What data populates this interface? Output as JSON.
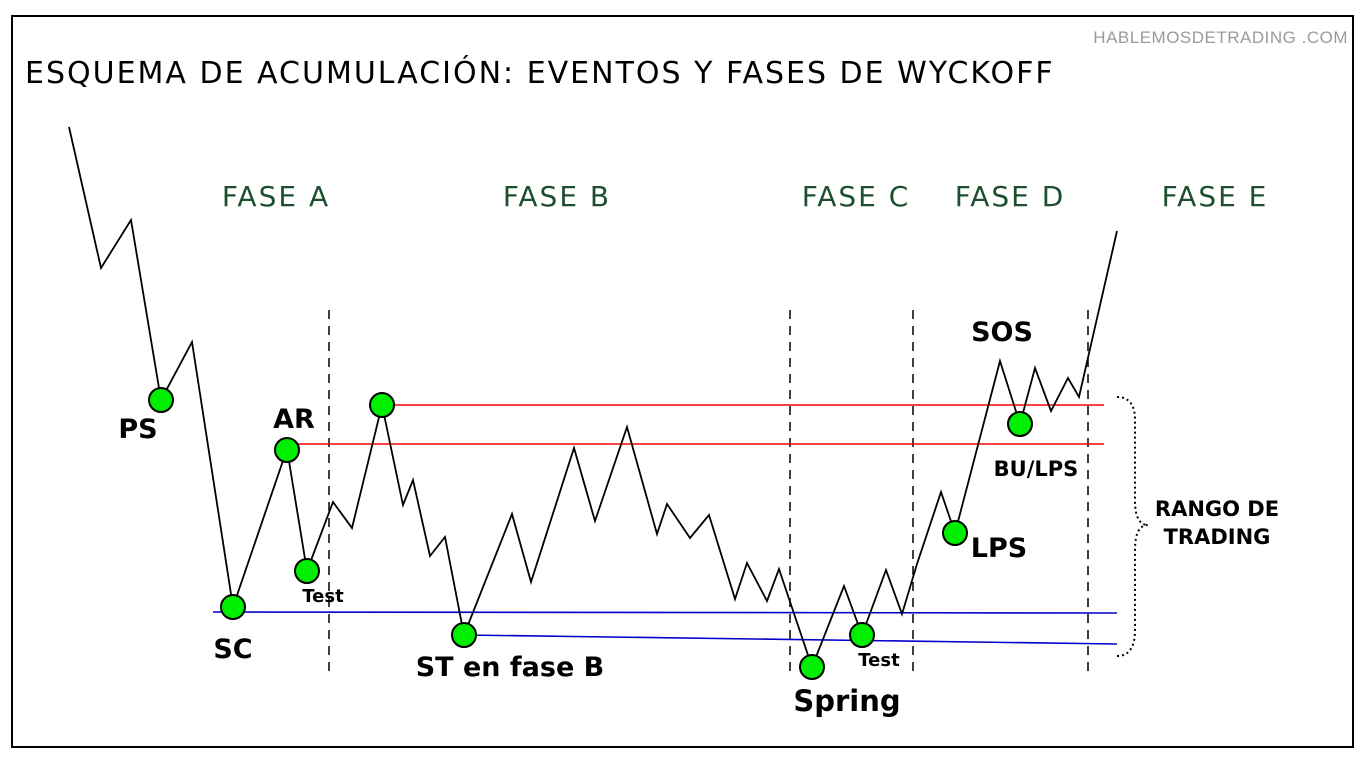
{
  "watermark": "HABLEMOSDETRADING .COM",
  "title": "ESQUEMA DE ACUMULACIÓN: EVENTOS Y FASES DE  WYCKOFF",
  "phases": {
    "a": "FASE A",
    "b": "FASE B",
    "c": "FASE C",
    "d": "FASE D",
    "e": "FASE E"
  },
  "events": {
    "ps": "PS",
    "sc": "SC",
    "ar": "AR",
    "test1": "Test",
    "st": "ST en fase B",
    "spring": "Spring",
    "test2": "Test",
    "lps": "LPS",
    "sos": "SOS",
    "bu_lps": "BU/LPS"
  },
  "range_label": [
    "RANGO DE",
    "TRADING"
  ],
  "colors": {
    "resistance": "#ff0000",
    "support": "#0000cc",
    "event_marker": "#00ee00",
    "phase_text": "#1d4f2f"
  }
}
